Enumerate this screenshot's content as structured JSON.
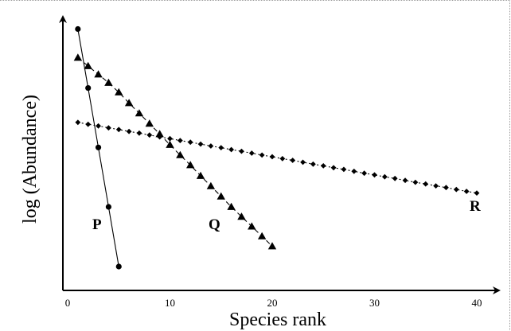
{
  "chart_data": {
    "type": "scatter",
    "xlabel": "Species rank",
    "ylabel": "log (Abundance)",
    "xlim": [
      0,
      40
    ],
    "ylim": [
      0,
      12
    ],
    "x_ticks": [
      0,
      10,
      20,
      30,
      40
    ],
    "x_tick_labels": [
      "0",
      "10",
      "20",
      "30",
      "40"
    ],
    "grid": false,
    "series": [
      {
        "name": "P",
        "marker": "circle",
        "line": "solid",
        "x": [
          1,
          2,
          3,
          4,
          5
        ],
        "y": [
          10.95,
          8.48,
          5.99,
          3.5,
          1.0
        ]
      },
      {
        "name": "Q",
        "marker": "triangle",
        "line": "dashed",
        "x": [
          1,
          2,
          3,
          4,
          5,
          6,
          7,
          8,
          9,
          10,
          11,
          12,
          13,
          14,
          15,
          16,
          17,
          18,
          19,
          20
        ],
        "y": [
          9.75,
          9.4,
          9.05,
          8.7,
          8.3,
          7.85,
          7.42,
          6.99,
          6.55,
          6.1,
          5.67,
          5.25,
          4.8,
          4.37,
          3.94,
          3.5,
          3.09,
          2.68,
          2.27,
          1.85
        ]
      },
      {
        "name": "R",
        "marker": "diamond",
        "line": "dotted",
        "x": [
          1,
          2,
          3,
          4,
          5,
          6,
          7,
          8,
          9,
          10,
          11,
          12,
          13,
          14,
          15,
          16,
          17,
          18,
          19,
          20,
          21,
          22,
          23,
          24,
          25,
          26,
          27,
          28,
          29,
          30,
          31,
          32,
          33,
          34,
          35,
          36,
          37,
          38,
          39,
          40
        ],
        "y": [
          7.04,
          6.96,
          6.89,
          6.81,
          6.74,
          6.66,
          6.59,
          6.51,
          6.43,
          6.36,
          6.28,
          6.21,
          6.13,
          6.05,
          5.98,
          5.9,
          5.83,
          5.75,
          5.67,
          5.6,
          5.52,
          5.45,
          5.37,
          5.29,
          5.22,
          5.14,
          5.07,
          4.99,
          4.91,
          4.84,
          4.76,
          4.69,
          4.61,
          4.53,
          4.46,
          4.38,
          4.31,
          4.23,
          4.15,
          4.08
        ]
      }
    ]
  }
}
